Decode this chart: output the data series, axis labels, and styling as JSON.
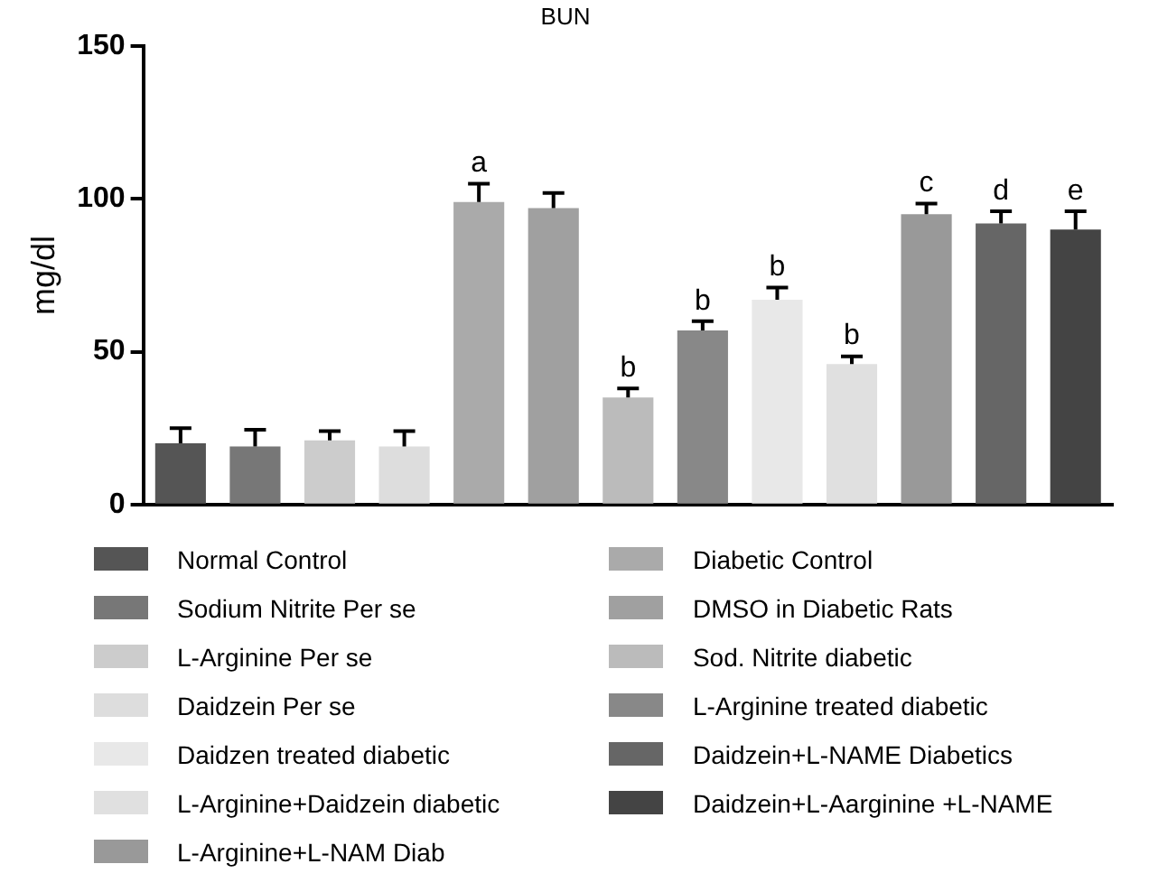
{
  "chart_data": {
    "type": "bar",
    "title": "BUN",
    "ylabel": "mg/dl",
    "categories": [
      null,
      null,
      null,
      null,
      null,
      null,
      null,
      null,
      null,
      null,
      null,
      null,
      null
    ],
    "ylim": [
      0,
      150
    ],
    "yticks": [
      0,
      50,
      100,
      150
    ],
    "legend": "bottom",
    "series": [
      {
        "name": "Normal Control",
        "color": "#555555",
        "values": [
          20,
          null,
          null,
          null,
          null,
          null,
          null,
          null,
          null,
          null,
          null,
          null,
          null
        ],
        "errors": [
          [
            20,
            25
          ],
          null,
          null,
          null,
          null,
          null,
          null,
          null,
          null,
          null,
          null,
          null,
          null
        ]
      },
      {
        "name": "Sodium Nitrite Per se",
        "color": "#777777",
        "values": [
          null,
          19,
          null,
          null,
          null,
          null,
          null,
          null,
          null,
          null,
          null,
          null,
          null
        ],
        "errors": [
          null,
          [
            19,
            24.5
          ],
          null,
          null,
          null,
          null,
          null,
          null,
          null,
          null,
          null,
          null,
          null
        ]
      },
      {
        "name": "L-Arginine Per se",
        "color": "#cccccc",
        "values": [
          null,
          null,
          21,
          null,
          null,
          null,
          null,
          null,
          null,
          null,
          null,
          null,
          null
        ],
        "errors": [
          null,
          null,
          [
            21,
            24
          ],
          null,
          null,
          null,
          null,
          null,
          null,
          null,
          null,
          null,
          null
        ]
      },
      {
        "name": "Daidzein Per se",
        "color": "#dddddd",
        "values": [
          null,
          null,
          null,
          19,
          null,
          null,
          null,
          null,
          null,
          null,
          null,
          null,
          null
        ],
        "errors": [
          null,
          null,
          null,
          [
            19,
            24
          ],
          null,
          null,
          null,
          null,
          null,
          null,
          null,
          null,
          null
        ]
      },
      {
        "name": "Daidzen treated diabetic",
        "color": "#e8e8e8",
        "values": [
          null,
          null,
          null,
          null,
          null,
          null,
          null,
          null,
          67,
          null,
          null,
          null,
          null
        ],
        "errors": [
          null,
          null,
          null,
          null,
          null,
          null,
          null,
          null,
          [
            67,
            71
          ],
          null,
          null,
          null,
          null
        ],
        "value_labels": [
          null,
          null,
          null,
          null,
          null,
          null,
          null,
          null,
          "b",
          null,
          null,
          null,
          null
        ]
      },
      {
        "name": "L-Arginine+Daidzein diabetic",
        "color": "#e0e0e0",
        "values": [
          null,
          null,
          null,
          null,
          null,
          null,
          null,
          null,
          null,
          46,
          null,
          null,
          null
        ],
        "errors": [
          null,
          null,
          null,
          null,
          null,
          null,
          null,
          null,
          null,
          [
            46,
            48.5
          ],
          null,
          null,
          null
        ],
        "value_labels": [
          null,
          null,
          null,
          null,
          null,
          null,
          null,
          null,
          null,
          "b",
          null,
          null,
          null
        ]
      },
      {
        "name": "L-Arginine+L-NAM Diab",
        "color": "#999999",
        "values": [
          null,
          null,
          null,
          null,
          null,
          null,
          null,
          null,
          null,
          null,
          95,
          null,
          null
        ],
        "errors": [
          null,
          null,
          null,
          null,
          null,
          null,
          null,
          null,
          null,
          null,
          [
            95,
            98.5
          ],
          null,
          null
        ],
        "value_labels": [
          null,
          null,
          null,
          null,
          null,
          null,
          null,
          null,
          null,
          null,
          "c",
          null,
          null
        ]
      },
      {
        "name": "Diabetic Control",
        "color": "#aaaaaa",
        "values": [
          null,
          null,
          null,
          null,
          99,
          null,
          null,
          null,
          null,
          null,
          null,
          null,
          null
        ],
        "errors": [
          null,
          null,
          null,
          null,
          [
            99,
            105
          ],
          null,
          null,
          null,
          null,
          null,
          null,
          null,
          null
        ],
        "value_labels": [
          null,
          null,
          null,
          null,
          "a",
          null,
          null,
          null,
          null,
          null,
          null,
          null,
          null
        ]
      },
      {
        "name": "DMSO in Diabetic Rats",
        "color": "#a0a0a0",
        "values": [
          null,
          null,
          null,
          null,
          null,
          97,
          null,
          null,
          null,
          null,
          null,
          null,
          null
        ],
        "errors": [
          null,
          null,
          null,
          null,
          null,
          [
            97,
            102
          ],
          null,
          null,
          null,
          null,
          null,
          null,
          null
        ]
      },
      {
        "name": "Sod. Nitrite diabetic",
        "color": "#bbbbbb",
        "values": [
          null,
          null,
          null,
          null,
          null,
          null,
          35,
          null,
          null,
          null,
          null,
          null,
          null
        ],
        "errors": [
          null,
          null,
          null,
          null,
          null,
          null,
          [
            35,
            38
          ],
          null,
          null,
          null,
          null,
          null,
          null
        ],
        "value_labels": [
          null,
          null,
          null,
          null,
          null,
          null,
          "b",
          null,
          null,
          null,
          null,
          null,
          null
        ]
      },
      {
        "name": "L-Arginine treated diabetic",
        "color": "#888888",
        "values": [
          null,
          null,
          null,
          null,
          null,
          null,
          null,
          57,
          null,
          null,
          null,
          null,
          null
        ],
        "errors": [
          null,
          null,
          null,
          null,
          null,
          null,
          null,
          [
            57,
            60
          ],
          null,
          null,
          null,
          null,
          null
        ],
        "value_labels": [
          null,
          null,
          null,
          null,
          null,
          null,
          null,
          "b",
          null,
          null,
          null,
          null,
          null
        ]
      },
      {
        "name": "Daidzein+L-NAME Diabetics",
        "color": "#666666",
        "values": [
          null,
          null,
          null,
          null,
          null,
          null,
          null,
          null,
          null,
          null,
          null,
          92,
          null
        ],
        "errors": [
          null,
          null,
          null,
          null,
          null,
          null,
          null,
          null,
          null,
          null,
          null,
          [
            92,
            96
          ],
          null
        ],
        "value_labels": [
          null,
          null,
          null,
          null,
          null,
          null,
          null,
          null,
          null,
          null,
          null,
          "d",
          null
        ]
      },
      {
        "name": "Daidzein+L-Aarginine +L-NAME",
        "color": "#444444",
        "values": [
          null,
          null,
          null,
          null,
          null,
          null,
          null,
          null,
          null,
          null,
          null,
          null,
          90
        ],
        "errors": [
          null,
          null,
          null,
          null,
          null,
          null,
          null,
          null,
          null,
          null,
          null,
          null,
          [
            90,
            96
          ]
        ],
        "value_labels": [
          null,
          null,
          null,
          null,
          null,
          null,
          null,
          null,
          null,
          null,
          null,
          null,
          "e"
        ]
      }
    ]
  }
}
